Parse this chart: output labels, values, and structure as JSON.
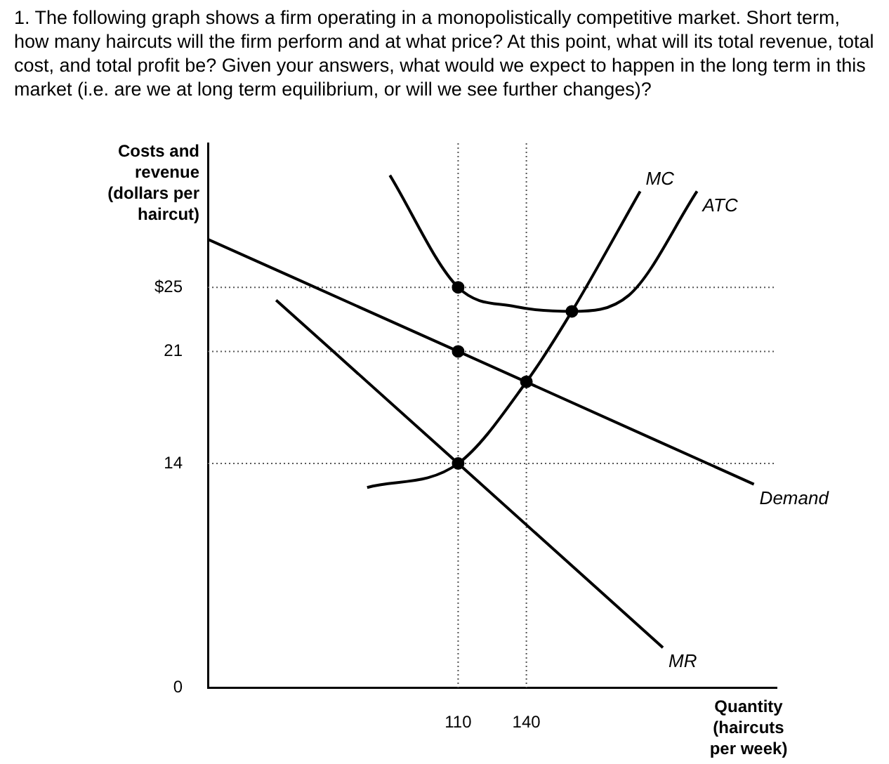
{
  "chart_data": {
    "type": "line",
    "title": "1. The following graph shows a firm operating in a monopolistically competitive market. Short term, how many haircuts will the firm perform and at what price? At this point, what will its total revenue, total cost, and total profit be? Given your answers, what would we expect to happen in the long term in this market (i.e. are we at long term equilibrium, or will we see further changes)?",
    "ylabel": "Costs and revenue (dollars per haircut)",
    "xlabel": "Quantity (haircuts per week)",
    "xlim": [
      0,
      250
    ],
    "ylim": [
      0,
      34
    ],
    "xticks": [
      110,
      140
    ],
    "yticks": [
      0,
      14,
      21,
      {
        "value": 25,
        "label": "$25"
      }
    ],
    "grid": false,
    "legend": false,
    "marker": "none",
    "line_style": "solid",
    "series": [
      {
        "name": "Demand",
        "color": "#000000",
        "x": [
          0,
          110,
          240
        ],
        "values": [
          28,
          21,
          12.7
        ]
      },
      {
        "name": "MR",
        "color": "#000000",
        "x": [
          30,
          110,
          200
        ],
        "values": [
          24.2,
          14,
          2.5
        ]
      },
      {
        "name": "MC",
        "color": "#000000",
        "x": [
          70,
          110,
          140,
          160,
          190
        ],
        "values": [
          12.5,
          14,
          19.1,
          23.5,
          31
        ]
      },
      {
        "name": "ATC",
        "color": "#000000",
        "x": [
          80,
          110,
          135,
          160,
          185,
          215
        ],
        "values": [
          32,
          25,
          23.8,
          23.5,
          24.5,
          31
        ]
      },
      {
        "type": "scatter",
        "marker": "circle",
        "color": "#000000",
        "x": [
          110,
          110,
          110,
          140,
          160
        ],
        "values": [
          25,
          21,
          14,
          19.1,
          23.5
        ]
      }
    ],
    "ref_lines": [
      {
        "axis": "y",
        "value": 25,
        "line_style": "dotted",
        "color": "#555555"
      },
      {
        "axis": "y",
        "value": 21,
        "line_style": "dotted",
        "color": "#555555"
      },
      {
        "axis": "y",
        "value": 14,
        "line_style": "dotted",
        "color": "#555555"
      },
      {
        "axis": "x",
        "value": 110,
        "line_style": "dotted",
        "color": "#555555"
      },
      {
        "axis": "x",
        "value": 140,
        "line_style": "dotted",
        "color": "#555555"
      }
    ]
  }
}
